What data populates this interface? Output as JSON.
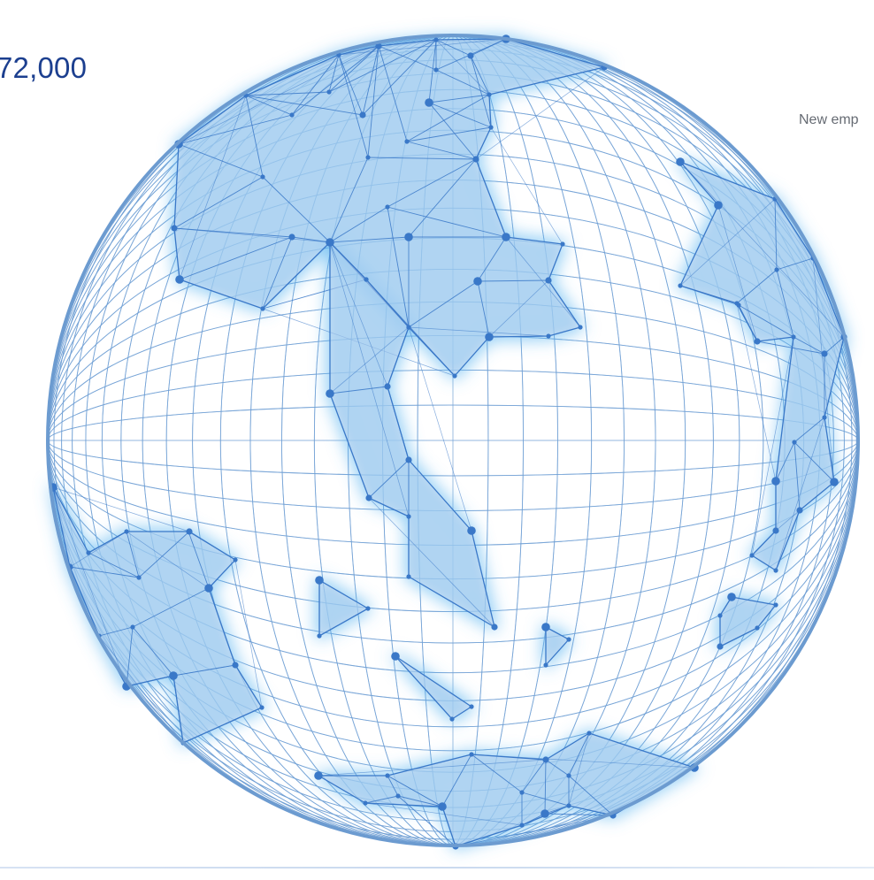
{
  "stat": {
    "value": "72,000",
    "caption": "New emp"
  },
  "colors": {
    "accent_text": "#1c3f8f",
    "globe_line": "#6f9fd4",
    "globe_rim": "#6c9bd0",
    "land_fill": "#bcd3ee",
    "land_glow": "#58b4f0",
    "node": "#3a78c8"
  },
  "globe": {
    "meridian_count": 36,
    "parallel_count": 36
  }
}
